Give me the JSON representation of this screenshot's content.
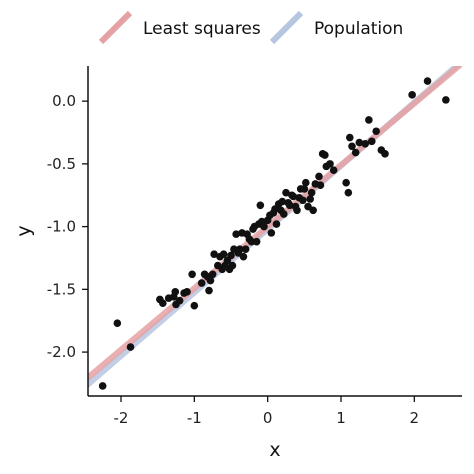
{
  "chart_data": {
    "type": "scatter",
    "title": "",
    "xlabel": "x",
    "ylabel": "y",
    "xlim": [
      -2.45,
      2.65
    ],
    "ylim": [
      -2.35,
      0.28
    ],
    "x_ticks": [
      -2,
      -1,
      0,
      1,
      2
    ],
    "x_tick_labels": [
      "-2",
      "-1",
      "0",
      "1",
      "2"
    ],
    "y_ticks": [
      0,
      -0.5,
      -1,
      -1.5,
      -2
    ],
    "y_tick_labels": [
      "0.0",
      "-0.5",
      "-1.0",
      "-1.5",
      "-2.0"
    ],
    "grid": false,
    "legend_position": "top",
    "lines": [
      {
        "name": "Least squares",
        "color": "#e5a1a3",
        "intercept": -1.0,
        "slope": 0.491
      },
      {
        "name": "Population",
        "color": "#b6c6e0",
        "intercept": -1.02,
        "slope": 0.505
      }
    ],
    "series": [
      {
        "name": "",
        "color": "#111111",
        "x": [
          -2.25,
          -2.05,
          -1.87,
          -1.47,
          -1.43,
          -1.35,
          -1.28,
          -1.26,
          -1.25,
          -1.2,
          -1.14,
          -1.1,
          -1.03,
          -1.0,
          -0.9,
          -0.86,
          -0.82,
          -0.8,
          -0.78,
          -0.75,
          -0.73,
          -0.68,
          -0.65,
          -0.62,
          -0.6,
          -0.58,
          -0.55,
          -0.52,
          -0.5,
          -0.48,
          -0.46,
          -0.43,
          -0.4,
          -0.38,
          -0.35,
          -0.33,
          -0.3,
          -0.28,
          -0.25,
          -0.22,
          -0.2,
          -0.18,
          -0.15,
          -0.12,
          -0.1,
          -0.08,
          -0.05,
          0.0,
          0.03,
          0.05,
          0.08,
          0.1,
          0.12,
          0.15,
          0.18,
          0.2,
          0.22,
          0.25,
          0.28,
          0.3,
          0.33,
          0.35,
          0.38,
          0.4,
          0.43,
          0.45,
          0.48,
          0.5,
          0.52,
          0.55,
          0.58,
          0.6,
          0.62,
          0.65,
          0.7,
          0.72,
          0.75,
          0.78,
          0.8,
          0.85,
          0.9,
          1.07,
          1.1,
          1.12,
          1.15,
          1.2,
          1.25,
          1.33,
          1.38,
          1.42,
          1.48,
          1.55,
          1.6,
          1.97,
          2.18,
          2.43
        ],
        "y": [
          -2.27,
          -1.77,
          -1.96,
          -1.58,
          -1.61,
          -1.57,
          -1.56,
          -1.52,
          -1.62,
          -1.59,
          -1.53,
          -1.52,
          -1.38,
          -1.63,
          -1.45,
          -1.38,
          -1.4,
          -1.51,
          -1.43,
          -1.38,
          -1.22,
          -1.31,
          -1.24,
          -1.34,
          -1.22,
          -1.31,
          -1.27,
          -1.34,
          -1.23,
          -1.31,
          -1.18,
          -1.06,
          -1.21,
          -1.18,
          -1.05,
          -1.24,
          -1.18,
          -1.06,
          -1.1,
          -1.12,
          -1.02,
          -1.0,
          -1.12,
          -0.98,
          -0.83,
          -0.96,
          -1.0,
          -0.95,
          -0.91,
          -1.05,
          -0.89,
          -0.86,
          -0.98,
          -0.82,
          -0.87,
          -0.8,
          -0.9,
          -0.73,
          -0.81,
          -0.83,
          -0.75,
          -0.76,
          -0.84,
          -0.87,
          -0.77,
          -0.7,
          -0.79,
          -0.7,
          -0.65,
          -0.84,
          -0.78,
          -0.73,
          -0.87,
          -0.66,
          -0.6,
          -0.67,
          -0.42,
          -0.43,
          -0.52,
          -0.5,
          -0.55,
          -0.65,
          -0.73,
          -0.29,
          -0.36,
          -0.41,
          -0.33,
          -0.34,
          -0.15,
          -0.32,
          -0.24,
          -0.39,
          -0.42,
          0.05,
          0.16,
          0.01
        ]
      }
    ]
  }
}
